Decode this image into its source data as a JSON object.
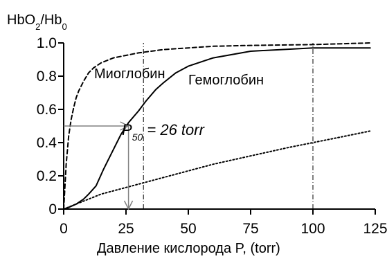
{
  "chart_data": {
    "type": "line",
    "ylabel": {
      "main": "HbO",
      "sub1": "2",
      "mid": "/Hb",
      "sub2": "0"
    },
    "xlabel": "Давление кислорода P, (torr)",
    "xlim": [
      0,
      125
    ],
    "ylim": [
      0,
      1.0
    ],
    "x_ticks": [
      0,
      25,
      50,
      75,
      100,
      125
    ],
    "y_ticks": [
      0,
      0.2,
      0.4,
      0.6,
      0.8,
      1.0
    ],
    "x_tick_labels": [
      "0",
      "25",
      "50",
      "75",
      "100",
      "125"
    ],
    "y_tick_labels": [
      "0",
      "0.2",
      "0.4",
      "0.6",
      "0.8",
      "1.0"
    ],
    "series": [
      {
        "name": "Миоглобин",
        "style": "dashed",
        "x": [
          0,
          1,
          2,
          3,
          4,
          5,
          6,
          8,
          10,
          12,
          15,
          20,
          30,
          40,
          50,
          60,
          75,
          100,
          123
        ],
        "y": [
          0,
          0.27,
          0.44,
          0.54,
          0.61,
          0.67,
          0.71,
          0.77,
          0.82,
          0.85,
          0.88,
          0.91,
          0.94,
          0.96,
          0.97,
          0.98,
          0.985,
          0.99,
          1.0
        ]
      },
      {
        "name": "Гемоглобин",
        "style": "solid",
        "x": [
          0,
          2,
          5,
          8,
          10,
          13,
          16,
          20,
          23,
          26,
          30,
          33,
          37,
          40,
          45,
          50,
          60,
          75,
          100,
          123
        ],
        "y": [
          0,
          0.01,
          0.03,
          0.06,
          0.09,
          0.14,
          0.24,
          0.36,
          0.45,
          0.52,
          0.59,
          0.65,
          0.72,
          0.76,
          0.82,
          0.86,
          0.91,
          0.95,
          0.97,
          0.97
        ]
      },
      {
        "name": "",
        "style": "dotted",
        "x": [
          0,
          5,
          10,
          15,
          20,
          25,
          30,
          40,
          50,
          60,
          75,
          90,
          100,
          110,
          123
        ],
        "y": [
          0,
          0.03,
          0.06,
          0.09,
          0.11,
          0.13,
          0.15,
          0.19,
          0.23,
          0.27,
          0.32,
          0.37,
          0.4,
          0.43,
          0.47
        ]
      }
    ],
    "reference_lines": [
      {
        "axis": "x",
        "value": 32,
        "from": 0,
        "to": 1.0,
        "style": "dash-dot"
      },
      {
        "axis": "x",
        "value": 100,
        "from": 0,
        "to": 1.0,
        "style": "dash-dot"
      }
    ],
    "annotation_arrows": [
      {
        "from": [
          0,
          0.5
        ],
        "to": [
          26,
          0.5
        ],
        "color": "#808080"
      },
      {
        "from": [
          26,
          0.5
        ],
        "to": [
          26,
          0
        ],
        "color": "#808080"
      }
    ],
    "annotations": {
      "myoglobin": {
        "text": "Миоглобин",
        "x": 62,
        "y": 1.035
      },
      "hemoglobin": {
        "text": "Гемоглобин",
        "x": 88,
        "y": 0.8
      },
      "p50": {
        "main": "P",
        "sub": "50",
        "rest": " = 26 torr",
        "x": 26.5,
        "y": 0.435
      }
    },
    "colors": {
      "axis": "#000000",
      "reference": "#000000",
      "arrow": "#808080",
      "series": "#000000"
    }
  }
}
